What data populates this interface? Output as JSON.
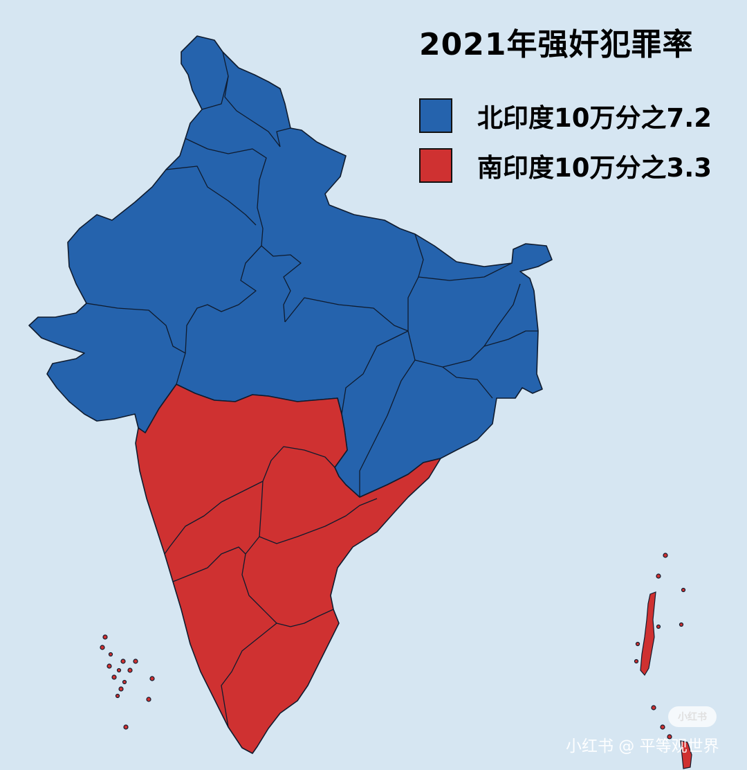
{
  "title": "2021年强奸犯罪率",
  "legend": [
    {
      "label": "北印度10万分之7.2",
      "color": "#2563ad",
      "region": "north",
      "rate_per_100k": 7.2
    },
    {
      "label": "南印度10万分之3.3",
      "color": "#cf3131",
      "region": "south",
      "rate_per_100k": 3.3
    }
  ],
  "colors": {
    "ocean": "#d6e6f2",
    "north": "#2563ad",
    "south": "#cf3131",
    "border": "#0f1b2e"
  },
  "watermark": {
    "badge": "小红书",
    "text": "小红书 @ 平等观世界"
  }
}
